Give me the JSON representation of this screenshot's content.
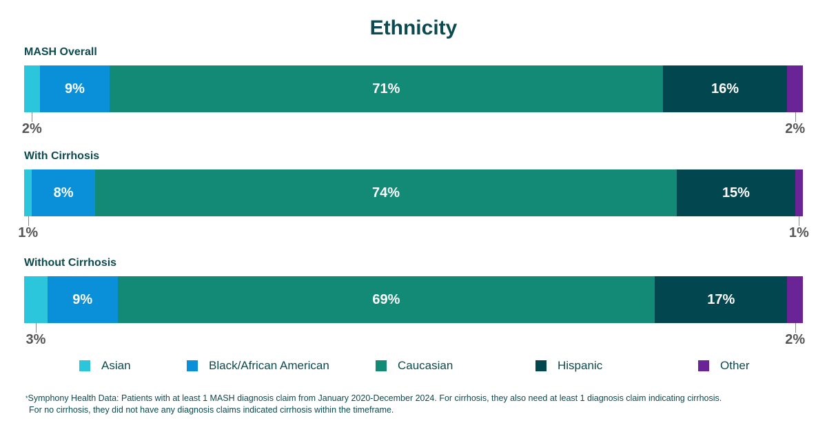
{
  "chart_data": {
    "type": "bar",
    "orientation": "horizontal",
    "stacked": true,
    "title": "Ethnicity",
    "categories": [
      "MASH Overall",
      "With Cirrhosis",
      "Without Cirrhosis"
    ],
    "series": [
      {
        "name": "Asian",
        "color": "#2cc6dc",
        "values": [
          2,
          1,
          3
        ],
        "labels": [
          "2%",
          "1%",
          "3%"
        ]
      },
      {
        "name": "Black/African American",
        "color": "#0a8fd9",
        "values": [
          9,
          8,
          9
        ],
        "labels": [
          "9%",
          "8%",
          "9%"
        ]
      },
      {
        "name": "Caucasian",
        "color": "#138a76",
        "values": [
          71,
          74,
          69
        ],
        "labels": [
          "71%",
          "74%",
          "69%"
        ]
      },
      {
        "name": "Hispanic",
        "color": "#02464f",
        "values": [
          16,
          15,
          17
        ],
        "labels": [
          "16%",
          "15%",
          "17%"
        ]
      },
      {
        "name": "Other",
        "color": "#6b2496",
        "values": [
          2,
          1,
          2
        ],
        "labels": [
          "2%",
          "1%",
          "2%"
        ]
      }
    ],
    "legend_position": "bottom"
  },
  "footnote": {
    "marker": "*",
    "line1": "Symphony Health Data: Patients with at least 1 MASH diagnosis claim from January 2020-December 2024. For cirrhosis, they also need at least 1 diagnosis claim indicating cirrhosis.",
    "line2": "For no cirrhosis, they did not have any diagnosis claims indicated cirrhosis within the timeframe."
  }
}
